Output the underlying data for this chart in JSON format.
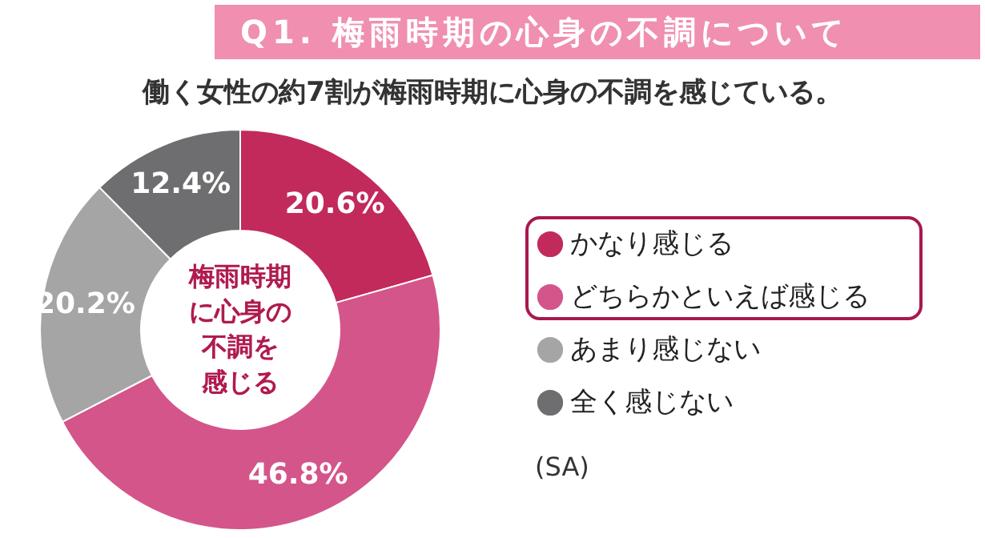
{
  "chart_data": {
    "type": "donut",
    "title": "Q1. 梅雨時期の心身の不調について",
    "subtitle": "働く女性の約7割が梅雨時期に心身の不調を感じている。",
    "categories": [
      "かなり感じる",
      "どちらかといえば感じる",
      "あまり感じない",
      "全く感じない"
    ],
    "values": [
      20.6,
      46.8,
      20.2,
      12.4
    ],
    "colors": [
      "#c22a5c",
      "#d4558a",
      "#a5a5a5",
      "#6e6e70"
    ],
    "value_labels": [
      "20.6%",
      "46.8%",
      "20.2%",
      "12.4%"
    ],
    "legend": "right",
    "annotations": [
      "梅雨時期",
      "に心身の",
      "不調を",
      "感じる",
      "(SA)"
    ]
  }
}
